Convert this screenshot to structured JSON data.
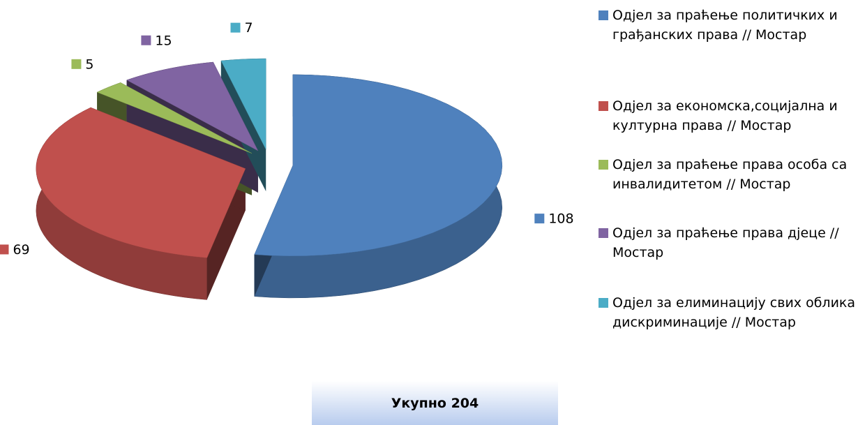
{
  "chart_data": {
    "type": "pie",
    "categories": [
      "Одјел за праћење политичких и грађанских права // Мостар",
      "Одјел за економска,социјална и културна права // Мостар",
      "Одјел за праћење права особа са инвалидитетом // Мостар",
      "Одјел за праћење права дјеце // Мостар",
      "Одјел за елиминацију свих облика дискриминације // Мостар"
    ],
    "values": [
      108,
      69,
      5,
      15,
      7
    ],
    "colors": [
      "#4f81bd",
      "#c0504d",
      "#9bbb59",
      "#8064a2",
      "#4bacc6"
    ],
    "legend": "right",
    "annotation": "Укупно 204"
  }
}
